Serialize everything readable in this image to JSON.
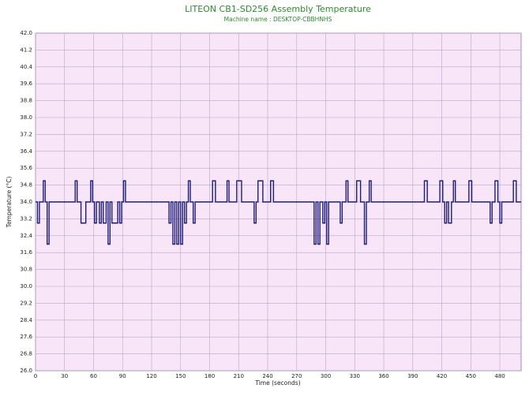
{
  "chart_data": {
    "type": "line",
    "title": "LITEON CB1-SD256 Assembly Temperature",
    "subtitle": "Machine name : DESKTOP-CBBHNHS",
    "x_label": "Time (seconds)",
    "y_label": "Temperature (°C)",
    "drawstyle": "steps-post",
    "grid": true,
    "xlim": [
      0,
      502
    ],
    "ylim": [
      26,
      42
    ],
    "xticks": [
      0,
      30,
      60,
      90,
      120,
      150,
      180,
      210,
      240,
      270,
      300,
      330,
      360,
      390,
      420,
      450,
      480
    ],
    "yticks": [
      {
        "value": 42,
        "label": "42.0"
      },
      41.2,
      40.4,
      39.6,
      38.8,
      {
        "value": 38,
        "label": "38.0"
      },
      37.2,
      36.4,
      35.6,
      34.8,
      {
        "value": 34,
        "label": "34.0"
      },
      33.2,
      32.4,
      31.6,
      30.8,
      {
        "value": 30,
        "label": "30.0"
      },
      29.2,
      28.4,
      27.6,
      26.8,
      {
        "value": 26,
        "label": "26.0"
      }
    ],
    "x": [
      0,
      2,
      4,
      8,
      10,
      12,
      14,
      41,
      43,
      47,
      52,
      57,
      59,
      61,
      63,
      66,
      68,
      70,
      73,
      75,
      77,
      79,
      85,
      87,
      89,
      91,
      93,
      138,
      140,
      142,
      144,
      146,
      148,
      150,
      152,
      154,
      156,
      158,
      160,
      163,
      165,
      183,
      186,
      198,
      200,
      208,
      213,
      226,
      228,
      230,
      235,
      243,
      246,
      288,
      290,
      292,
      294,
      297,
      299,
      301,
      303,
      315,
      317,
      321,
      323,
      332,
      336,
      340,
      342,
      345,
      347,
      402,
      405,
      418,
      421,
      423,
      425,
      427,
      430,
      432,
      434,
      448,
      451,
      470,
      472,
      475,
      478,
      480,
      482,
      494,
      497,
      502
    ],
    "series": [
      {
        "color": "#1c1c80",
        "values": [
          34,
          33,
          34,
          35,
          34,
          32,
          34,
          35,
          34,
          33,
          34,
          35,
          34,
          33,
          34,
          33,
          34,
          33,
          34,
          32,
          34,
          33,
          34,
          33,
          34,
          35,
          34,
          33,
          34,
          32,
          34,
          32,
          34,
          32,
          34,
          33,
          34,
          35,
          34,
          33,
          34,
          35,
          34,
          35,
          34,
          35,
          34,
          33,
          34,
          35,
          34,
          35,
          34,
          32,
          34,
          32,
          34,
          33,
          34,
          32,
          34,
          33,
          34,
          35,
          34,
          35,
          34,
          32,
          34,
          35,
          34,
          35,
          34,
          35,
          34,
          33,
          34,
          33,
          34,
          35,
          34,
          35,
          34,
          33,
          34,
          35,
          34,
          33,
          34,
          35,
          34,
          34
        ]
      }
    ]
  }
}
